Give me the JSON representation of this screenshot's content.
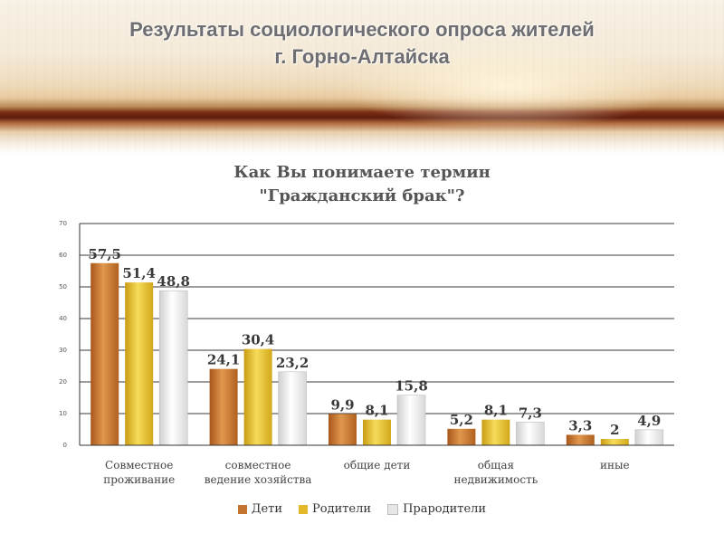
{
  "page": {
    "title_line1": "Результаты социологического опроса жителей",
    "title_line2": "г. Горно-Алтайска"
  },
  "colors": {
    "deti": "#c4742e",
    "roditeli": "#e3b82a",
    "praroditeli": "#e6e6e6",
    "gridline": "#3a3a3a",
    "title_text": "#6e6e72"
  },
  "chart_data": {
    "type": "bar",
    "title_line1": "Как Вы понимаете термин",
    "title_line2": "\"Гражданский брак\"?",
    "categories": [
      [
        "Совместное",
        "проживание"
      ],
      [
        "совместное",
        "ведение хозяйства"
      ],
      [
        "общие дети"
      ],
      [
        "общая",
        "недвижимость"
      ],
      [
        "иные"
      ]
    ],
    "series": [
      {
        "name": "Дети",
        "values": [
          57.5,
          24.1,
          9.9,
          5.2,
          3.3
        ],
        "labels": [
          "57,5",
          "24,1",
          "9,9",
          "5,2",
          "3,3"
        ]
      },
      {
        "name": "Родители",
        "values": [
          51.4,
          30.4,
          8.1,
          8.1,
          2
        ],
        "labels": [
          "51,4",
          "30,4",
          "8,1",
          "8,1",
          "2"
        ]
      },
      {
        "name": "Прародители",
        "values": [
          48.8,
          23.2,
          15.8,
          7.3,
          4.9
        ],
        "labels": [
          "48,8",
          "23,2",
          "15,8",
          "7,3",
          "4,9"
        ]
      }
    ],
    "yticks": [
      0,
      10,
      20,
      30,
      40,
      50,
      60,
      70
    ],
    "ytick_labels": [
      "0",
      "10",
      "20",
      "30",
      "40",
      "50",
      "60",
      "70"
    ],
    "ylim": [
      0,
      70
    ],
    "grid": true,
    "legend_position": "bottom"
  }
}
